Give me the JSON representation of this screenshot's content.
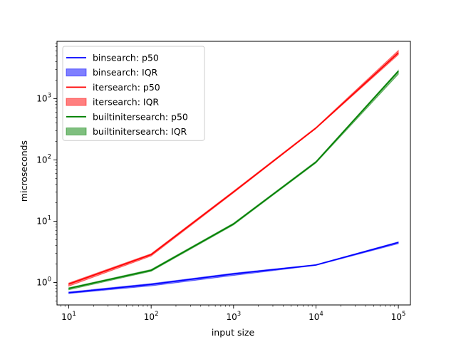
{
  "chart_data": {
    "type": "line",
    "title": "",
    "xlabel": "input size",
    "ylabel": "microseconds",
    "xscale": "log",
    "yscale": "log",
    "xlim": [
      7.2,
      140000
    ],
    "ylim": [
      0.43,
      8600
    ],
    "grid": false,
    "legend_position": "top-left",
    "x": [
      10,
      100,
      1000,
      10000,
      100000
    ],
    "x_ticks": [
      {
        "base": "10",
        "exp": "1",
        "value": 10
      },
      {
        "base": "10",
        "exp": "2",
        "value": 100
      },
      {
        "base": "10",
        "exp": "3",
        "value": 1000
      },
      {
        "base": "10",
        "exp": "4",
        "value": 10000
      },
      {
        "base": "10",
        "exp": "5",
        "value": 100000
      }
    ],
    "y_ticks": [
      {
        "base": "10",
        "exp": "0",
        "value": 1
      },
      {
        "base": "10",
        "exp": "1",
        "value": 10
      },
      {
        "base": "10",
        "exp": "2",
        "value": 100
      },
      {
        "base": "10",
        "exp": "3",
        "value": 1000
      }
    ],
    "series": [
      {
        "name": "binsearch",
        "color": "#0000ff",
        "p50_label": "binsearch: p50",
        "iqr_label": "binsearch: IQR",
        "p50": [
          0.68,
          0.93,
          1.38,
          1.93,
          4.5
        ],
        "iqr_low": [
          0.66,
          0.88,
          1.3,
          1.9,
          4.3
        ],
        "iqr_high": [
          0.7,
          0.96,
          1.42,
          1.96,
          4.6
        ]
      },
      {
        "name": "itersearch",
        "color": "#ff0000",
        "p50_label": "itersearch: p50",
        "iqr_label": "itersearch: IQR",
        "p50": [
          0.94,
          2.85,
          30,
          330,
          5600
        ],
        "iqr_low": [
          0.87,
          2.7,
          29,
          325,
          5200
        ],
        "iqr_high": [
          0.98,
          2.95,
          31,
          340,
          6100
        ]
      },
      {
        "name": "builtinitersearch",
        "color": "#008000",
        "p50_label": "builtinitersearch: p50",
        "iqr_label": "builtinitersearch: IQR",
        "p50": [
          0.8,
          1.58,
          9.0,
          92,
          2800
        ],
        "iqr_low": [
          0.76,
          1.52,
          8.7,
          89,
          2500
        ],
        "iqr_high": [
          0.82,
          1.63,
          9.3,
          95,
          2900
        ]
      }
    ]
  }
}
